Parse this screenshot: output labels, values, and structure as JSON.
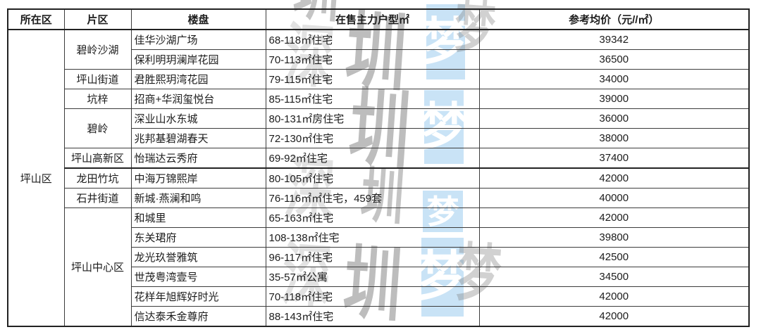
{
  "watermark": {
    "blue": "#c9e3f6",
    "chars": {
      "shen": "深",
      "zhen": "圳",
      "meng": "梦"
    }
  },
  "chart_data": {
    "type": "table",
    "columns": [
      "所在区",
      "片区",
      "楼盘",
      "在售主力户型㎡",
      "参考均价（元//㎡）"
    ],
    "district": "坪山区",
    "groups": [
      {
        "area": "碧岭沙湖",
        "rows": [
          {
            "name": "佳华沙湖广场",
            "unit": "68-118㎡住宅",
            "price": "39342"
          },
          {
            "name": "保利明玥澜岸花园",
            "unit": "70-113㎡住宅",
            "price": "36500"
          }
        ]
      },
      {
        "area": "坪山街道",
        "rows": [
          {
            "name": "君胜熙玥湾花园",
            "unit": "79-115㎡住宅",
            "price": "34000"
          }
        ]
      },
      {
        "area": "坑梓",
        "rows": [
          {
            "name": "招商+华润玺悦台",
            "unit": "85-115㎡住宅",
            "price": "39000"
          }
        ]
      },
      {
        "area": "碧岭",
        "rows": [
          {
            "name": "深业山水东城",
            "unit": "80-131㎡房住宅",
            "price": "36000"
          },
          {
            "name": "兆邦基碧湖春天",
            "unit": "72-130㎡住宅",
            "price": "38000"
          }
        ]
      },
      {
        "area": "坪山高新区",
        "rows": [
          {
            "name": "怡瑞达云秀府",
            "unit": "69-92㎡住宅",
            "price": "37400"
          }
        ]
      },
      {
        "area": "龙田竹坑",
        "rows": [
          {
            "name": "中海万锦熙岸",
            "unit": "80-105㎡住宅",
            "price": "42000"
          }
        ]
      },
      {
        "area": "石井街道",
        "rows": [
          {
            "name": "新城·燕澜和鸣",
            "unit": "76-116㎡㎡住宅，459套",
            "price": "40000"
          }
        ]
      },
      {
        "area": "坪山中心区",
        "rows": [
          {
            "name": "和城里",
            "unit": "65-163㎡住宅",
            "price": "42000"
          },
          {
            "name": "东关珺府",
            "unit": "108-138㎡住宅",
            "price": "39800"
          },
          {
            "name": "龙光玖誉雅筑",
            "unit": "96-117㎡住宅",
            "price": "42500"
          },
          {
            "name": "世茂粤湾壹号",
            "unit": "35-57㎡公寓",
            "price": "34500"
          },
          {
            "name": "花样年旭辉好时光",
            "unit": "70-118㎡住宅",
            "price": "42000"
          },
          {
            "name": "信达泰禾金尊府",
            "unit": "88-143㎡住宅",
            "price": "42000"
          }
        ]
      }
    ]
  }
}
